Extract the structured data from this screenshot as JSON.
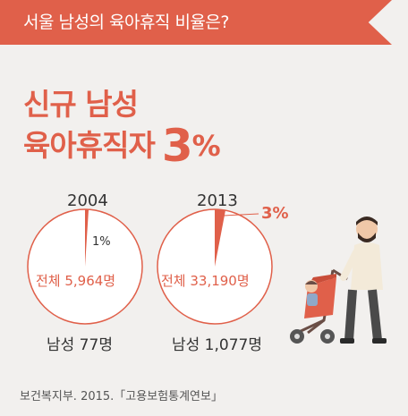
{
  "banner": {
    "title": "서울 남성의 육아휴직 비율은?"
  },
  "headline": {
    "line1": "신규 남성",
    "line2": "육아휴직자",
    "figure": "3",
    "unit": "%"
  },
  "chart_data": [
    {
      "type": "pie",
      "year": "2004",
      "total_label": "전체 5,964명",
      "total": 5964,
      "male": 77,
      "male_label": "남성 77명",
      "share_percent": 1,
      "share_label": "1%",
      "colors": {
        "slice": "#e0604a",
        "rest": "#ffffff"
      }
    },
    {
      "type": "pie",
      "year": "2013",
      "total_label": "전체 33,190명",
      "total": 33190,
      "male": 1077,
      "male_label": "남성 1,077명",
      "share_percent": 3,
      "share_label": "3%",
      "colors": {
        "slice": "#e0604a",
        "rest": "#ffffff"
      }
    }
  ],
  "source": "보건복지부. 2015.「고용보험통계연보」",
  "colors": {
    "accent": "#e0604a",
    "background": "#f2f0ee"
  }
}
